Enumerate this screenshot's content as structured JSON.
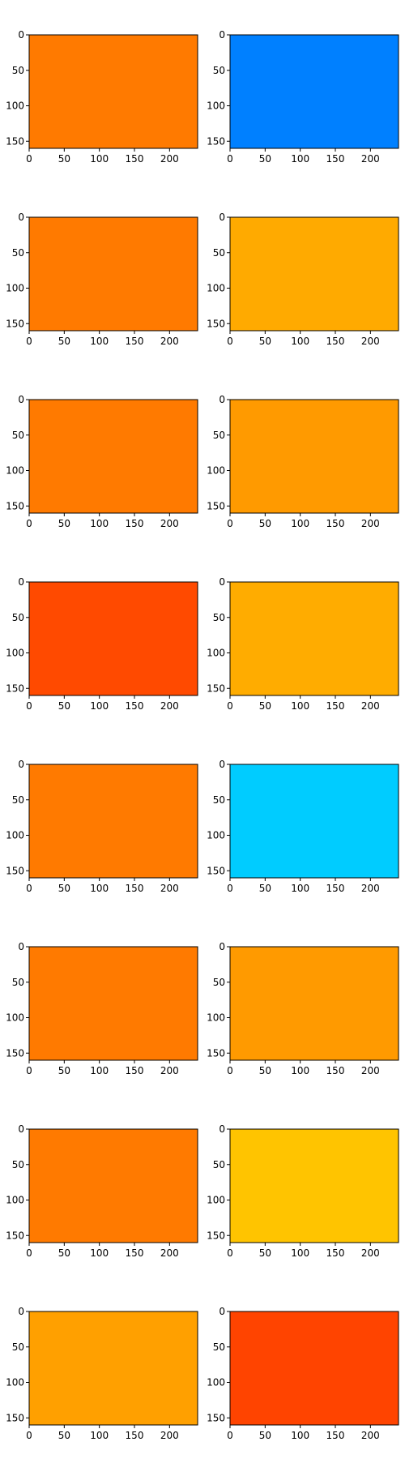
{
  "chart_data": [
    {
      "type": "image",
      "color": "#ff7a00",
      "xlim": [
        0,
        240
      ],
      "ylim": [
        160,
        0
      ],
      "xticks": [
        0,
        50,
        100,
        150,
        200
      ],
      "yticks": [
        0,
        50,
        100,
        150
      ]
    },
    {
      "type": "image",
      "color": "#0080ff",
      "xlim": [
        0,
        240
      ],
      "ylim": [
        160,
        0
      ],
      "xticks": [
        0,
        50,
        100,
        150,
        200
      ],
      "yticks": [
        0,
        50,
        100,
        150
      ]
    },
    {
      "type": "image",
      "color": "#ff7a00",
      "xlim": [
        0,
        240
      ],
      "ylim": [
        160,
        0
      ],
      "xticks": [
        0,
        50,
        100,
        150,
        200
      ],
      "yticks": [
        0,
        50,
        100,
        150
      ]
    },
    {
      "type": "image",
      "color": "#ffaa00",
      "xlim": [
        0,
        240
      ],
      "ylim": [
        160,
        0
      ],
      "xticks": [
        0,
        50,
        100,
        150,
        200
      ],
      "yticks": [
        0,
        50,
        100,
        150
      ]
    },
    {
      "type": "image",
      "color": "#ff7a00",
      "xlim": [
        0,
        240
      ],
      "ylim": [
        160,
        0
      ],
      "xticks": [
        0,
        50,
        100,
        150,
        200
      ],
      "yticks": [
        0,
        50,
        100,
        150
      ]
    },
    {
      "type": "image",
      "color": "#ff9a00",
      "xlim": [
        0,
        240
      ],
      "ylim": [
        160,
        0
      ],
      "xticks": [
        0,
        50,
        100,
        150,
        200
      ],
      "yticks": [
        0,
        50,
        100,
        150
      ]
    },
    {
      "type": "image",
      "color": "#ff4a00",
      "xlim": [
        0,
        240
      ],
      "ylim": [
        160,
        0
      ],
      "xticks": [
        0,
        50,
        100,
        150,
        200
      ],
      "yticks": [
        0,
        50,
        100,
        150
      ]
    },
    {
      "type": "image",
      "color": "#ffac00",
      "xlim": [
        0,
        240
      ],
      "ylim": [
        160,
        0
      ],
      "xticks": [
        0,
        50,
        100,
        150,
        200
      ],
      "yticks": [
        0,
        50,
        100,
        150
      ]
    },
    {
      "type": "image",
      "color": "#ff7a00",
      "xlim": [
        0,
        240
      ],
      "ylim": [
        160,
        0
      ],
      "xticks": [
        0,
        50,
        100,
        150,
        200
      ],
      "yticks": [
        0,
        50,
        100,
        150
      ]
    },
    {
      "type": "image",
      "color": "#00ccff",
      "xlim": [
        0,
        240
      ],
      "ylim": [
        160,
        0
      ],
      "xticks": [
        0,
        50,
        100,
        150,
        200
      ],
      "yticks": [
        0,
        50,
        100,
        150
      ]
    },
    {
      "type": "image",
      "color": "#ff7a00",
      "xlim": [
        0,
        240
      ],
      "ylim": [
        160,
        0
      ],
      "xticks": [
        0,
        50,
        100,
        150,
        200
      ],
      "yticks": [
        0,
        50,
        100,
        150
      ]
    },
    {
      "type": "image",
      "color": "#ff9a00",
      "xlim": [
        0,
        240
      ],
      "ylim": [
        160,
        0
      ],
      "xticks": [
        0,
        50,
        100,
        150,
        200
      ],
      "yticks": [
        0,
        50,
        100,
        150
      ]
    },
    {
      "type": "image",
      "color": "#ff7a00",
      "xlim": [
        0,
        240
      ],
      "ylim": [
        160,
        0
      ],
      "xticks": [
        0,
        50,
        100,
        150,
        200
      ],
      "yticks": [
        0,
        50,
        100,
        150
      ]
    },
    {
      "type": "image",
      "color": "#ffc400",
      "xlim": [
        0,
        240
      ],
      "ylim": [
        160,
        0
      ],
      "xticks": [
        0,
        50,
        100,
        150,
        200
      ],
      "yticks": [
        0,
        50,
        100,
        150
      ]
    },
    {
      "type": "image",
      "color": "#ffa000",
      "xlim": [
        0,
        240
      ],
      "ylim": [
        160,
        0
      ],
      "xticks": [
        0,
        50,
        100,
        150,
        200
      ],
      "yticks": [
        0,
        50,
        100,
        150
      ]
    },
    {
      "type": "image",
      "color": "#ff4400",
      "xlim": [
        0,
        240
      ],
      "ylim": [
        160,
        0
      ],
      "xticks": [
        0,
        50,
        100,
        150,
        200
      ],
      "yticks": [
        0,
        50,
        100,
        150
      ]
    }
  ]
}
